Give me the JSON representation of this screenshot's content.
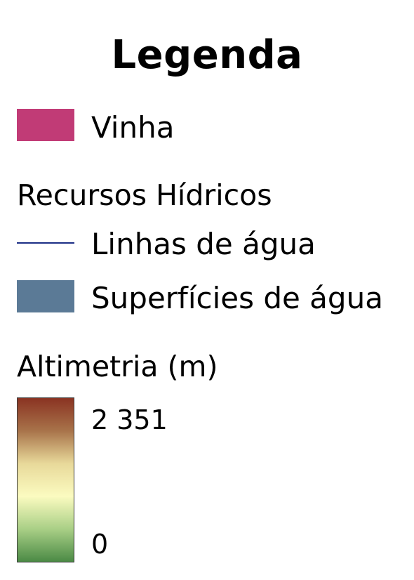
{
  "legend": {
    "title": "Legenda",
    "vinha": {
      "label": "Vinha",
      "color": "#c13b76"
    },
    "recursos_hidricos": {
      "title": "Recursos Hídricos",
      "linhas": {
        "label": "Linhas de água",
        "color": "#1c2f86"
      },
      "superficies": {
        "label": "Superfícies de água",
        "color": "#5b7a96"
      }
    },
    "altimetria": {
      "title": "Altimetria (m)",
      "max_label": "2 351",
      "min_label": "0",
      "ramp_colors": [
        "#8a3322",
        "#a8734a",
        "#e8d99a",
        "#fbfbc0",
        "#a9cf86",
        "#4b8a45"
      ]
    }
  }
}
